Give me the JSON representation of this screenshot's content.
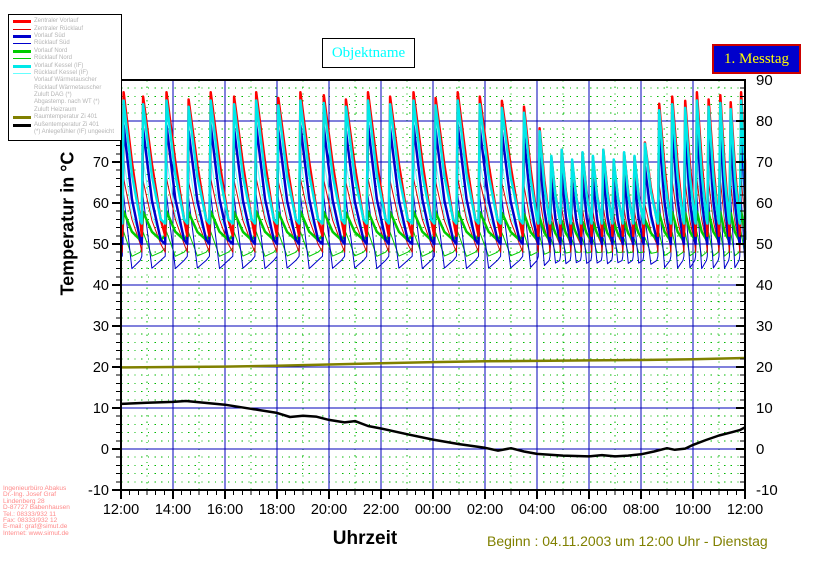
{
  "header": {
    "objektname_label": "Objektname",
    "messtag_label": "1. Messtag"
  },
  "legend": {
    "items": [
      {
        "label": "Zentraler Vorlauf",
        "color": "#ff0000",
        "thick": true
      },
      {
        "label": "Zentraler Rücklauf",
        "color": "#dd0000",
        "thick": false
      },
      {
        "label": "Vorlauf Süd",
        "color": "#0000cc",
        "thick": true
      },
      {
        "label": "Rücklauf Süd",
        "color": "#0000cc",
        "thick": false
      },
      {
        "label": "Vorlauf Nord",
        "color": "#00cc00",
        "thick": true
      },
      {
        "label": "Rücklauf Nord",
        "color": "#00cc00",
        "thick": false
      },
      {
        "label": "Vorlauf Kessel (IF)",
        "color": "#00e8e8",
        "thick": true
      },
      {
        "label": "Rücklauf Kessel (IF)",
        "color": "#66ffff",
        "thick": false
      },
      {
        "label": "Vorlauf Wärmetauscher",
        "color": "none",
        "thick": false
      },
      {
        "label": "Rücklauf Wärmetauscher",
        "color": "none",
        "thick": false
      },
      {
        "label": "Zuluft DAG (*)",
        "color": "none",
        "thick": false
      },
      {
        "label": "Abgastemp. nach WT (*)",
        "color": "none",
        "thick": false
      },
      {
        "label": "Zuluft Heizraum",
        "color": "none",
        "thick": false
      },
      {
        "label": "Raumtemperatur Zi 401",
        "color": "#808000",
        "thick": true
      },
      {
        "label": "Außentemperatur Zi 401",
        "color": "#000000",
        "thick": true
      },
      {
        "label": "(*) Anlegefühler (IF) ungeeicht",
        "color": "none",
        "thick": false
      }
    ]
  },
  "footer": {
    "x_axis_title": "Uhrzeit",
    "beginn_text": "Beginn : 04.11.2003 um 12:00 Uhr - Dienstag"
  },
  "address": {
    "lines": [
      "Ingenieurbüro Abakus",
      "Dr.-Ing. Josef Graf",
      "Lindenberg 28",
      "D-87727 Babenhausen",
      "Tel.: 08333/932 11",
      "Fax: 08333/932 12",
      "E-mail: graf@simut.de",
      "Internet: www.simut.de"
    ]
  },
  "chart_data": {
    "type": "line",
    "title": "Objektname",
    "xlabel": "Uhrzeit",
    "ylabel": "Temperatur in °C",
    "ylim": [
      -10,
      90
    ],
    "yticks": [
      -10,
      0,
      10,
      20,
      30,
      40,
      50,
      60,
      70,
      80,
      90
    ],
    "xlim_hours": [
      0,
      24
    ],
    "xtick_labels": [
      "12:00",
      "14:00",
      "16:00",
      "18:00",
      "20:00",
      "22:00",
      "00:00",
      "02:00",
      "04:00",
      "06:00",
      "08:00",
      "10:00",
      "12:00"
    ],
    "grid": {
      "major_color": "#0000b8",
      "minor_color": "#00b800",
      "major_dy": 10,
      "minor_dy": 2,
      "major_dx_hours": 2,
      "minor_dx_hours": 1,
      "grid_on": true,
      "legend_position": "top-left"
    },
    "series": [
      {
        "name": "Raumtemperatur Zi 401",
        "color": "#808000",
        "width": 2.5,
        "points": [
          [
            0,
            19.9
          ],
          [
            2,
            20.0
          ],
          [
            4,
            20.1
          ],
          [
            6,
            20.3
          ],
          [
            8,
            20.6
          ],
          [
            10,
            20.9
          ],
          [
            12,
            21.2
          ],
          [
            14,
            21.4
          ],
          [
            16,
            21.5
          ],
          [
            18,
            21.6
          ],
          [
            20,
            21.7
          ],
          [
            22,
            21.9
          ],
          [
            24,
            22.2
          ]
        ]
      },
      {
        "name": "Außentemperatur Zi 401",
        "color": "#000000",
        "width": 2.5,
        "points": [
          [
            0,
            11.0
          ],
          [
            1,
            11.3
          ],
          [
            2,
            11.5
          ],
          [
            2.5,
            11.7
          ],
          [
            3,
            11.4
          ],
          [
            4,
            10.8
          ],
          [
            5,
            9.8
          ],
          [
            6,
            8.8
          ],
          [
            6.5,
            7.8
          ],
          [
            7,
            8.1
          ],
          [
            7.5,
            7.9
          ],
          [
            8,
            7.1
          ],
          [
            8.6,
            6.5
          ],
          [
            9,
            6.8
          ],
          [
            9.5,
            5.6
          ],
          [
            10,
            5.0
          ],
          [
            11,
            3.6
          ],
          [
            12,
            2.3
          ],
          [
            13,
            1.2
          ],
          [
            14,
            0.3
          ],
          [
            14.5,
            -0.4
          ],
          [
            15,
            0.2
          ],
          [
            15.5,
            -0.6
          ],
          [
            16,
            -1.2
          ],
          [
            17,
            -1.6
          ],
          [
            18,
            -1.8
          ],
          [
            18.5,
            -1.5
          ],
          [
            19,
            -1.8
          ],
          [
            19.5,
            -1.6
          ],
          [
            20,
            -1.3
          ],
          [
            20.5,
            -0.6
          ],
          [
            21,
            0.2
          ],
          [
            21.3,
            -0.2
          ],
          [
            21.7,
            0.1
          ],
          [
            22,
            1.0
          ],
          [
            22.5,
            2.2
          ],
          [
            23,
            3.3
          ],
          [
            23.5,
            4.1
          ],
          [
            23.8,
            4.6
          ],
          [
            24,
            5.3
          ]
        ]
      }
    ],
    "burst_series": [
      {
        "name": "Rücklauf Nord",
        "color": "#00cc00",
        "width": 1,
        "base": 49,
        "peak": 53,
        "mid": 47,
        "end": 48
      },
      {
        "name": "Rücklauf Süd",
        "color": "#0000cc",
        "width": 1,
        "base": 47,
        "peak": 62,
        "mid": 44,
        "end": 46
      },
      {
        "name": "Zentraler Rücklauf",
        "color": "#dd0000",
        "width": 1,
        "base": 48,
        "peak": 66,
        "mid": 56,
        "end": 50
      },
      {
        "name": "Rücklauf Kessel (IF)",
        "color": "#66ffff",
        "width": 1,
        "base": 52,
        "peak": 71,
        "mid": 57,
        "end": 52
      },
      {
        "name": "Vorlauf Nord",
        "color": "#00cc00",
        "width": 2.5,
        "base": 52,
        "peak": 58,
        "mid": 53,
        "end": 51
      },
      {
        "name": "Vorlauf Süd",
        "color": "#0000cc",
        "width": 2.5,
        "base": 50,
        "peak": 79,
        "mid": 61,
        "end": 51
      },
      {
        "name": "Zentraler Vorlauf",
        "color": "#ff0000",
        "width": 2.5,
        "base": 52,
        "peak": 87,
        "mid": 70,
        "end": 56
      },
      {
        "name": "Vorlauf Kessel (IF)",
        "color": "#00e8e8",
        "width": 2.5,
        "base": 55,
        "peak": 85,
        "mid": 67,
        "end": 56
      }
    ],
    "bursts": [
      {
        "t": 0.1,
        "s": 1.0
      },
      {
        "t": 0.85,
        "s": 0.97
      },
      {
        "t": 1.75,
        "s": 1.0
      },
      {
        "t": 2.6,
        "s": 0.95
      },
      {
        "t": 3.45,
        "s": 1.0
      },
      {
        "t": 4.35,
        "s": 0.97
      },
      {
        "t": 5.2,
        "s": 1.0
      },
      {
        "t": 6.05,
        "s": 0.96
      },
      {
        "t": 6.9,
        "s": 1.0
      },
      {
        "t": 7.8,
        "s": 0.98
      },
      {
        "t": 8.65,
        "s": 0.95
      },
      {
        "t": 9.5,
        "s": 1.0
      },
      {
        "t": 10.35,
        "s": 0.97
      },
      {
        "t": 11.25,
        "s": 1.0
      },
      {
        "t": 12.1,
        "s": 0.96
      },
      {
        "t": 12.95,
        "s": 1.0
      },
      {
        "t": 13.8,
        "s": 0.97
      },
      {
        "t": 14.65,
        "s": 0.94
      },
      {
        "t": 15.5,
        "s": 0.9
      },
      {
        "t": 16.1,
        "s": 0.75
      },
      {
        "t": 16.55,
        "s": 0.55
      },
      {
        "t": 16.95,
        "s": 0.6
      },
      {
        "t": 17.35,
        "s": 0.52
      },
      {
        "t": 17.75,
        "s": 0.58
      },
      {
        "t": 18.15,
        "s": 0.55
      },
      {
        "t": 18.55,
        "s": 0.6
      },
      {
        "t": 18.95,
        "s": 0.52
      },
      {
        "t": 19.35,
        "s": 0.58
      },
      {
        "t": 19.75,
        "s": 0.55
      },
      {
        "t": 20.15,
        "s": 0.65
      },
      {
        "t": 20.7,
        "s": 0.92
      },
      {
        "t": 21.2,
        "s": 0.97
      },
      {
        "t": 21.7,
        "s": 0.94
      },
      {
        "t": 22.15,
        "s": 1.0
      },
      {
        "t": 22.6,
        "s": 0.95
      },
      {
        "t": 23.05,
        "s": 0.98
      },
      {
        "t": 23.45,
        "s": 0.93
      },
      {
        "t": 23.85,
        "s": 1.0
      }
    ]
  }
}
